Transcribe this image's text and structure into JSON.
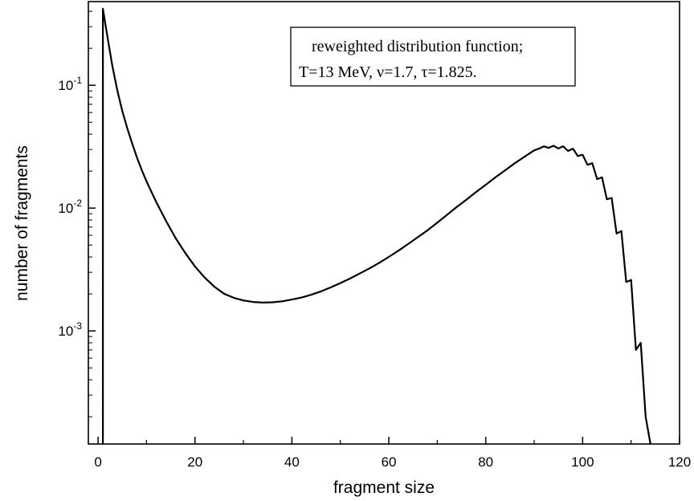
{
  "chart_data": {
    "type": "line",
    "title": "",
    "xlabel": "fragment size",
    "ylabel": "number of fragments",
    "xlim": [
      -2,
      120
    ],
    "ylim": [
      0.00012,
      0.48
    ],
    "yscale": "log",
    "grid": false,
    "legend_position": "top-right",
    "x_ticks": [
      0,
      20,
      40,
      60,
      80,
      100,
      120
    ],
    "x_tick_labels": [
      "0",
      "20",
      "40",
      "60",
      "80",
      "100",
      "120"
    ],
    "y_ticks": [
      0.1,
      0.01,
      0.001
    ],
    "y_tick_labels": [
      {
        "base": "10",
        "exp": "-1"
      },
      {
        "base": "10",
        "exp": "-2"
      },
      {
        "base": "10",
        "exp": "-3"
      }
    ],
    "annotation": {
      "lines": [
        "reweighted distribution function;",
        "T=13 MeV, ν=1.7, τ=1.825."
      ]
    },
    "series": [
      {
        "color": "#000000",
        "x": [
          1,
          1,
          2,
          3,
          4,
          5,
          6,
          7,
          8,
          9,
          10,
          12,
          14,
          16,
          18,
          20,
          22,
          24,
          26,
          28,
          30,
          32,
          34,
          36,
          38,
          40,
          42,
          44,
          46,
          48,
          50,
          52,
          54,
          56,
          58,
          60,
          62,
          64,
          66,
          68,
          70,
          72,
          74,
          76,
          78,
          80,
          82,
          84,
          86,
          88,
          90,
          91,
          92,
          93,
          94,
          95,
          96,
          97,
          98,
          99,
          100,
          101,
          102,
          103,
          104,
          105,
          106,
          107,
          108,
          109,
          110,
          111,
          112,
          113,
          114
        ],
        "y": [
          0.00012,
          0.42,
          0.24,
          0.14,
          0.09,
          0.062,
          0.045,
          0.034,
          0.026,
          0.0205,
          0.0165,
          0.0112,
          0.0079,
          0.0057,
          0.0043,
          0.00335,
          0.00272,
          0.00229,
          0.00201,
          0.00186,
          0.00177,
          0.00172,
          0.0017,
          0.00171,
          0.00174,
          0.0018,
          0.00187,
          0.00197,
          0.0021,
          0.00226,
          0.00245,
          0.00267,
          0.00293,
          0.00323,
          0.00358,
          0.004,
          0.0045,
          0.0051,
          0.0058,
          0.0066,
          0.0076,
          0.0088,
          0.0102,
          0.0117,
          0.0135,
          0.0155,
          0.0178,
          0.0203,
          0.0232,
          0.0262,
          0.0295,
          0.0305,
          0.0318,
          0.0309,
          0.0322,
          0.0306,
          0.0318,
          0.0292,
          0.0305,
          0.0265,
          0.0272,
          0.0225,
          0.0232,
          0.0172,
          0.0178,
          0.0118,
          0.0121,
          0.0062,
          0.0065,
          0.0025,
          0.0026,
          0.0007,
          0.0008,
          0.0002,
          0.00012
        ]
      }
    ]
  }
}
